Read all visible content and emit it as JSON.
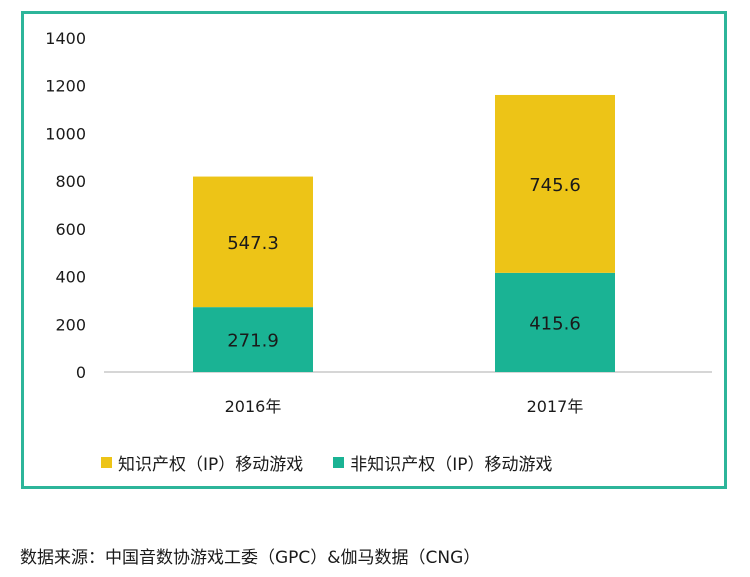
{
  "chart_data": {
    "type": "bar",
    "stacked": true,
    "categories": [
      "2016年",
      "2017年"
    ],
    "series": [
      {
        "name": "非知识产权（IP）移动游戏",
        "values": [
          271.9,
          415.6
        ],
        "color": "#1ab394"
      },
      {
        "name": "知识产权（IP）移动游戏",
        "values": [
          547.3,
          745.6
        ],
        "color": "#edc417"
      }
    ],
    "yticks": [
      "0",
      "200",
      "400",
      "600",
      "800",
      "1000",
      "1200",
      "1400"
    ],
    "ylim": [
      0,
      1400
    ],
    "data_labels": [
      [
        "271.9",
        "415.6"
      ],
      [
        "547.3",
        "745.6"
      ]
    ],
    "grid": false,
    "legend_position": "bottom",
    "legend": [
      {
        "label": "知识产权（IP）移动游戏",
        "color": "#edc417"
      },
      {
        "label": "非知识产权（IP）移动游戏",
        "color": "#1ab394"
      }
    ]
  },
  "source_note": "数据来源：中国音数协游戏工委（GPC）&伽马数据（CNG）"
}
